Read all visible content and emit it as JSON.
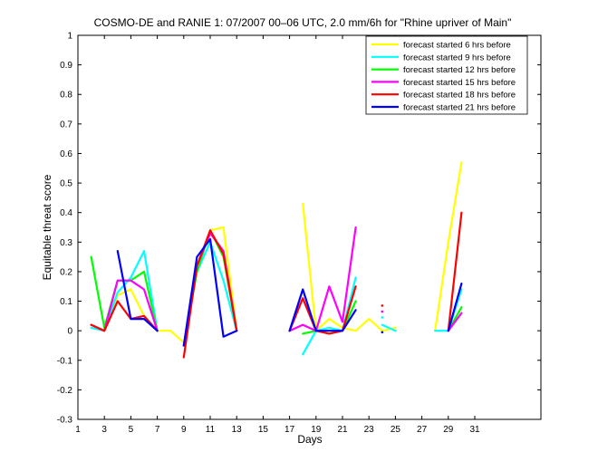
{
  "chart_data": {
    "type": "line",
    "title": "COSMO-DE and RANIE 1: 07/2007 00–06 UTC, 2.0 mm/6h for \"Rhine upriver of Main\"",
    "xlabel": "Days",
    "ylabel": "Equitable threat score",
    "xlim": [
      1,
      36
    ],
    "ylim": [
      -0.3,
      1
    ],
    "xticks": [
      1,
      3,
      5,
      7,
      9,
      11,
      13,
      15,
      17,
      19,
      21,
      23,
      25,
      27,
      29,
      31
    ],
    "yticks": [
      -0.3,
      -0.2,
      -0.1,
      0,
      0.1,
      0.2,
      0.3,
      0.4,
      0.5,
      0.6,
      0.7,
      0.8,
      0.9,
      1
    ],
    "ytick_labels": [
      "-0.3",
      "-0.2",
      "-0.1",
      "0",
      "0.1",
      "0.2",
      "0.3",
      "0.4",
      "0.5",
      "0.6",
      "0.7",
      "0.8",
      "0.9",
      "1"
    ],
    "grid": false,
    "legend_position": "top-right",
    "series": [
      {
        "name": "forecast started 6 hrs before",
        "color": "#ffff00",
        "points": [
          [
            2,
            0.02
          ],
          [
            3,
            0.0
          ],
          [
            4,
            0.12
          ],
          [
            5,
            0.14
          ],
          [
            6,
            0.05
          ],
          [
            7,
            0.0
          ],
          [
            8,
            0.0
          ],
          [
            9,
            -0.04
          ],
          [
            null,
            null
          ],
          [
            11,
            0.34
          ],
          [
            12,
            0.35
          ],
          [
            13,
            0.0
          ],
          [
            null,
            null
          ],
          [
            18,
            0.43
          ],
          [
            19,
            0.0
          ],
          [
            20,
            0.04
          ],
          [
            21,
            0.01
          ],
          [
            22,
            0.0
          ],
          [
            23,
            0.04
          ],
          [
            24,
            0.0
          ],
          [
            25,
            0.01
          ],
          [
            null,
            null
          ],
          [
            28,
            0.0
          ],
          [
            29,
            0.3
          ],
          [
            30,
            0.57
          ]
        ]
      },
      {
        "name": "forecast started 9 hrs before",
        "color": "#00ffff",
        "points": [
          [
            2,
            0.01
          ],
          [
            3,
            0.0
          ],
          [
            4,
            0.13
          ],
          [
            5,
            0.18
          ],
          [
            6,
            0.27
          ],
          [
            7,
            0.0
          ],
          [
            null,
            null
          ],
          [
            10,
            0.2
          ],
          [
            11,
            0.3
          ],
          [
            12,
            0.17
          ],
          [
            13,
            0.0
          ],
          [
            null,
            null
          ],
          [
            18,
            -0.08
          ],
          [
            19,
            0.0
          ],
          [
            20,
            0.01
          ],
          [
            21,
            0.0
          ],
          [
            22,
            0.18
          ],
          [
            null,
            null
          ],
          [
            24,
            0.02
          ],
          [
            25,
            0.0
          ],
          [
            null,
            null
          ],
          [
            28,
            0.0
          ],
          [
            29,
            0.0
          ],
          [
            30,
            0.14
          ]
        ]
      },
      {
        "name": "forecast started 12 hrs before",
        "color": "#00ff00",
        "points": [
          [
            2,
            0.25
          ],
          [
            3,
            0.01
          ],
          [
            4,
            0.17
          ],
          [
            5,
            0.17
          ],
          [
            6,
            0.2
          ],
          [
            7,
            0.0
          ],
          [
            null,
            null
          ],
          [
            9,
            -0.05
          ],
          [
            10,
            0.2
          ],
          [
            11,
            0.34
          ],
          [
            12,
            0.25
          ],
          [
            13,
            0.0
          ],
          [
            null,
            null
          ],
          [
            18,
            -0.01
          ],
          [
            19,
            0.0
          ],
          [
            20,
            0.0
          ],
          [
            21,
            0.0
          ],
          [
            22,
            0.1
          ],
          [
            null,
            null
          ],
          [
            29,
            0.0
          ],
          [
            30,
            0.08
          ]
        ]
      },
      {
        "name": "forecast started 15 hrs before",
        "color": "#ff00ff",
        "points": [
          [
            2,
            0.02
          ],
          [
            3,
            0.0
          ],
          [
            4,
            0.17
          ],
          [
            5,
            0.17
          ],
          [
            6,
            0.14
          ],
          [
            7,
            0.0
          ],
          [
            null,
            null
          ],
          [
            9,
            -0.05
          ],
          [
            10,
            0.22
          ],
          [
            11,
            0.33
          ],
          [
            12,
            0.27
          ],
          [
            13,
            0.0
          ],
          [
            null,
            null
          ],
          [
            17,
            0.0
          ],
          [
            18,
            0.02
          ],
          [
            19,
            0.0
          ],
          [
            20,
            0.15
          ],
          [
            21,
            0.03
          ],
          [
            22,
            0.35
          ],
          [
            null,
            null
          ],
          [
            24,
            0.05
          ],
          [
            null,
            null
          ],
          [
            29,
            0.0
          ],
          [
            30,
            0.06
          ]
        ]
      },
      {
        "name": "forecast started 18 hrs before",
        "color": "#ff0000",
        "points": [
          [
            2,
            0.02
          ],
          [
            3,
            0.0
          ],
          [
            4,
            0.1
          ],
          [
            5,
            0.04
          ],
          [
            6,
            0.05
          ],
          [
            7,
            0.0
          ],
          [
            null,
            null
          ],
          [
            9,
            -0.09
          ],
          [
            10,
            0.22
          ],
          [
            11,
            0.34
          ],
          [
            12,
            0.26
          ],
          [
            13,
            0.0
          ],
          [
            null,
            null
          ],
          [
            17,
            0.0
          ],
          [
            18,
            0.11
          ],
          [
            19,
            0.0
          ],
          [
            20,
            -0.01
          ],
          [
            21,
            0.0
          ],
          [
            22,
            0.15
          ],
          [
            null,
            null
          ],
          [
            24,
            0.07
          ],
          [
            null,
            null
          ],
          [
            29,
            0.0
          ],
          [
            30,
            0.4
          ]
        ]
      },
      {
        "name": "forecast started 21 hrs before",
        "color": "#0000ff",
        "points": [
          [
            4,
            0.27
          ],
          [
            5,
            0.04
          ],
          [
            6,
            0.04
          ],
          [
            7,
            0.0
          ],
          [
            null,
            null
          ],
          [
            9,
            -0.05
          ],
          [
            10,
            0.25
          ],
          [
            11,
            0.31
          ],
          [
            12,
            -0.02
          ],
          [
            13,
            0.0
          ],
          [
            null,
            null
          ],
          [
            17,
            0.0
          ],
          [
            18,
            0.14
          ],
          [
            19,
            0.0
          ],
          [
            20,
            0.0
          ],
          [
            21,
            0.0
          ],
          [
            22,
            0.07
          ],
          [
            null,
            null
          ],
          [
            24,
            0.0
          ],
          [
            null,
            null
          ],
          [
            29,
            0.0
          ],
          [
            30,
            0.16
          ]
        ]
      }
    ],
    "dots": [
      {
        "x": 24,
        "y": 0.085,
        "color": "#ff0000"
      },
      {
        "x": 24,
        "y": 0.065,
        "color": "#ff00ff"
      },
      {
        "x": 24,
        "y": 0.045,
        "color": "#00ffff"
      },
      {
        "x": 24,
        "y": -0.005,
        "color": "#0000ff"
      }
    ]
  }
}
